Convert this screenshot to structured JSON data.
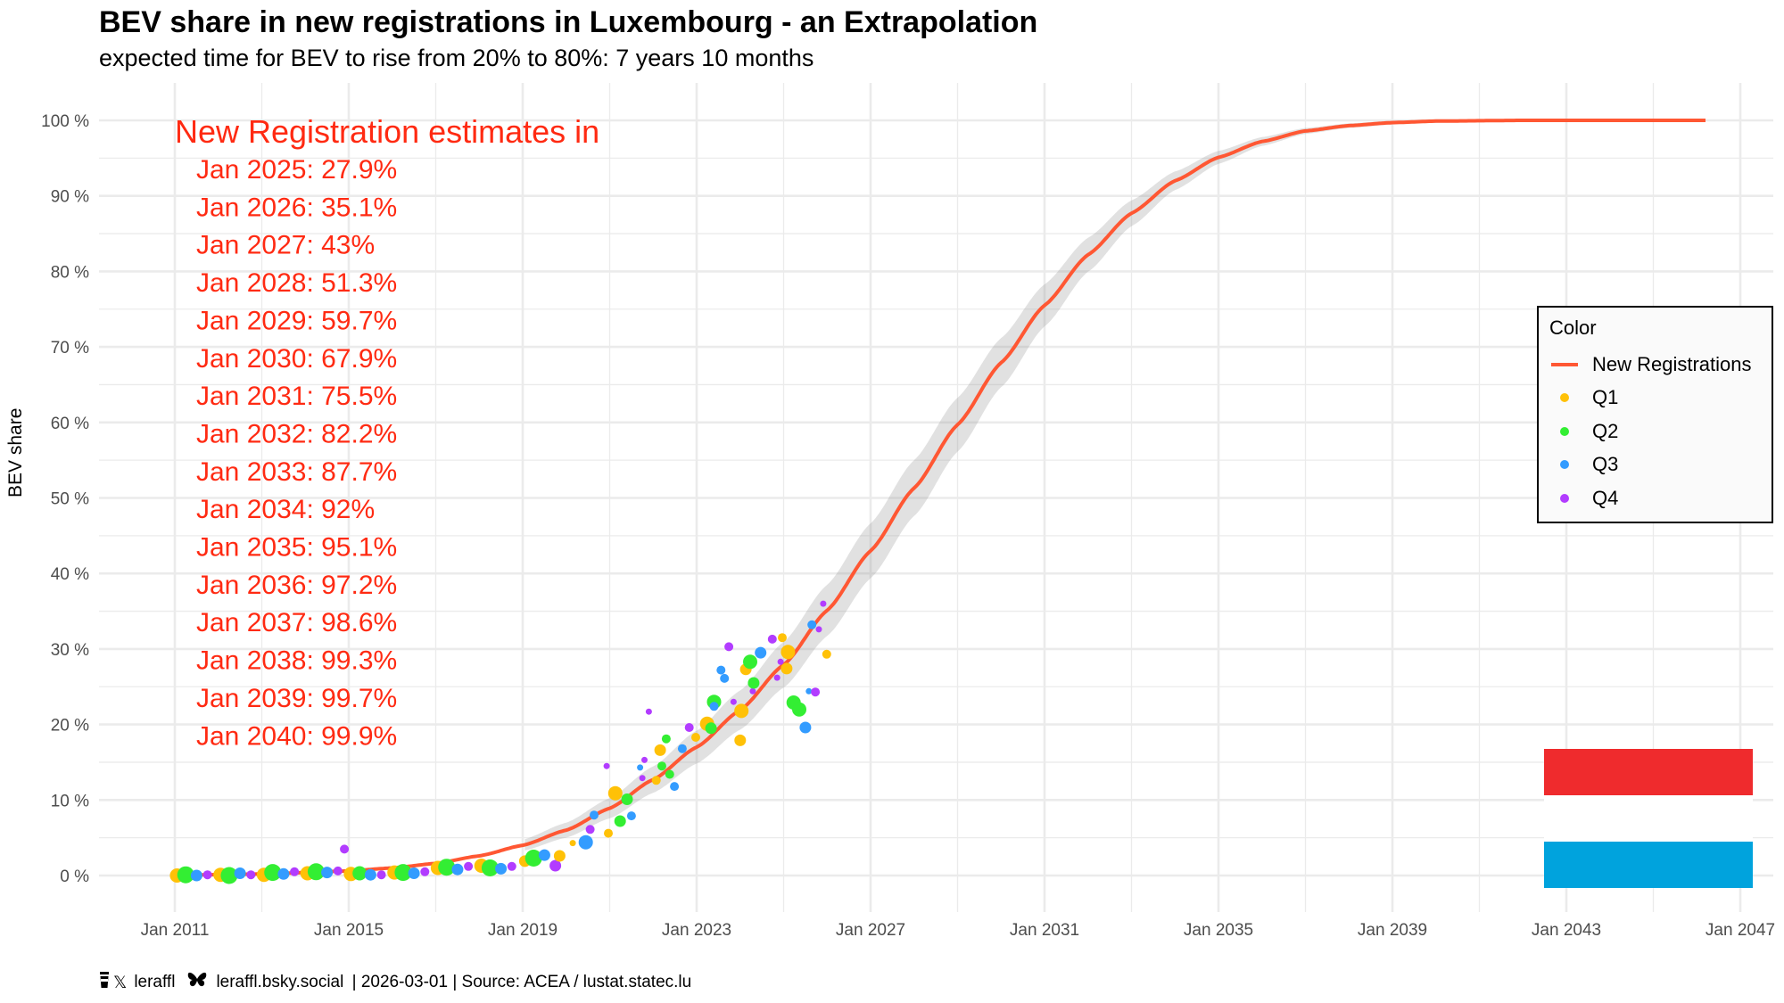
{
  "chart_data": {
    "type": "scatter",
    "title": "BEV share in new registrations in Luxembourg - an Extrapolation",
    "subtitle": "expected time for BEV to rise from 20% to 80%: 7 years 10 months",
    "xlabel": "",
    "ylabel": "BEV share",
    "xlim": [
      2009.8,
      2047.8
    ],
    "ylim": [
      -5,
      105
    ],
    "grid": true,
    "x_ticks": [
      "Jan 2011",
      "Jan 2015",
      "Jan 2019",
      "Jan 2023",
      "Jan 2027",
      "Jan 2031",
      "Jan 2035",
      "Jan 2039",
      "Jan 2043",
      "Jan 2047"
    ],
    "x_tick_values": [
      2011,
      2015,
      2019,
      2023,
      2027,
      2031,
      2035,
      2039,
      2043,
      2047
    ],
    "y_ticks": [
      "0 %",
      "10 %",
      "20 %",
      "30 %",
      "40 %",
      "50 %",
      "60 %",
      "70 %",
      "80 %",
      "90 %",
      "100 %"
    ],
    "y_tick_values": [
      0,
      10,
      20,
      30,
      40,
      50,
      60,
      70,
      80,
      90,
      100
    ],
    "legend": {
      "title": "Color",
      "position": "right",
      "entries": [
        {
          "label": "New Registrations",
          "kind": "line",
          "color": "#FF5733"
        },
        {
          "label": "Q1",
          "kind": "point",
          "color": "#FFC107"
        },
        {
          "label": "Q2",
          "kind": "point",
          "color": "#33EE33"
        },
        {
          "label": "Q3",
          "kind": "point",
          "color": "#339CFF"
        },
        {
          "label": "Q4",
          "kind": "point",
          "color": "#B23CFF"
        }
      ]
    },
    "fit_line": {
      "name": "New Registrations",
      "color": "#FF5733",
      "ribbon_color": "#DDDDDD",
      "x_start": 2011.0,
      "x_end": 2046.2,
      "points": [
        {
          "x": 2011,
          "y": 0.05
        },
        {
          "x": 2013,
          "y": 0.2
        },
        {
          "x": 2015,
          "y": 0.6
        },
        {
          "x": 2016,
          "y": 1.0
        },
        {
          "x": 2017,
          "y": 1.6
        },
        {
          "x": 2018,
          "y": 2.6
        },
        {
          "x": 2019,
          "y": 4.0
        },
        {
          "x": 2020,
          "y": 6.0
        },
        {
          "x": 2021,
          "y": 8.9
        },
        {
          "x": 2022,
          "y": 12.7
        },
        {
          "x": 2023,
          "y": 17.0
        },
        {
          "x": 2024,
          "y": 21.9
        },
        {
          "x": 2025,
          "y": 27.9
        },
        {
          "x": 2026,
          "y": 35.1
        },
        {
          "x": 2027,
          "y": 43.0
        },
        {
          "x": 2028,
          "y": 51.3
        },
        {
          "x": 2029,
          "y": 59.7
        },
        {
          "x": 2030,
          "y": 67.9
        },
        {
          "x": 2031,
          "y": 75.5
        },
        {
          "x": 2032,
          "y": 82.2
        },
        {
          "x": 2033,
          "y": 87.7
        },
        {
          "x": 2034,
          "y": 92.0
        },
        {
          "x": 2035,
          "y": 95.1
        },
        {
          "x": 2036,
          "y": 97.2
        },
        {
          "x": 2037,
          "y": 98.6
        },
        {
          "x": 2038,
          "y": 99.3
        },
        {
          "x": 2039,
          "y": 99.7
        },
        {
          "x": 2040,
          "y": 99.9
        },
        {
          "x": 2042,
          "y": 100.0
        },
        {
          "x": 2046.2,
          "y": 100.0
        }
      ]
    },
    "annotation": {
      "heading": "New Registration estimates in",
      "color": "#FF2A12",
      "lines": [
        "Jan 2025: 27.9%",
        "Jan 2026: 35.1%",
        "Jan 2027: 43%",
        "Jan 2028: 51.3%",
        "Jan 2029: 59.7%",
        "Jan 2030: 67.9%",
        "Jan 2031: 75.5%",
        "Jan 2032: 82.2%",
        "Jan 2033: 87.7%",
        "Jan 2034: 92%",
        "Jan 2035: 95.1%",
        "Jan 2036: 97.2%",
        "Jan 2037: 98.6%",
        "Jan 2038: 99.3%",
        "Jan 2039: 99.7%",
        "Jan 2040: 99.9%"
      ]
    },
    "flag": {
      "label": "Luxembourg flag",
      "colors": [
        "#EF2B2D",
        "#FFFFFF",
        "#00A3DD"
      ]
    },
    "series": [
      {
        "name": "Q1",
        "color": "#FFC107",
        "points": [
          {
            "x": 2011.05,
            "y": 0.0,
            "s": 3
          },
          {
            "x": 2012.05,
            "y": 0.1,
            "s": 3
          },
          {
            "x": 2013.05,
            "y": 0.1,
            "s": 3
          },
          {
            "x": 2014.05,
            "y": 0.3,
            "s": 3
          },
          {
            "x": 2015.05,
            "y": 0.2,
            "s": 3
          },
          {
            "x": 2016.05,
            "y": 0.4,
            "s": 3
          },
          {
            "x": 2017.05,
            "y": 1.0,
            "s": 3
          },
          {
            "x": 2018.05,
            "y": 1.3,
            "s": 3
          },
          {
            "x": 2019.05,
            "y": 1.9,
            "s": 2
          },
          {
            "x": 2019.85,
            "y": 2.6,
            "s": 2
          },
          {
            "x": 2020.15,
            "y": 4.3,
            "s": 0
          },
          {
            "x": 2020.97,
            "y": 5.6,
            "s": 1
          },
          {
            "x": 2021.13,
            "y": 10.9,
            "s": 3
          },
          {
            "x": 2022.07,
            "y": 12.6,
            "s": 1
          },
          {
            "x": 2022.16,
            "y": 16.6,
            "s": 2
          },
          {
            "x": 2022.98,
            "y": 18.3,
            "s": 1
          },
          {
            "x": 2023.24,
            "y": 20.1,
            "s": 3
          },
          {
            "x": 2024.0,
            "y": 17.9,
            "s": 2
          },
          {
            "x": 2024.03,
            "y": 21.8,
            "s": 3
          },
          {
            "x": 2024.13,
            "y": 27.3,
            "s": 2
          },
          {
            "x": 2024.97,
            "y": 31.5,
            "s": 1
          },
          {
            "x": 2025.07,
            "y": 27.4,
            "s": 2
          },
          {
            "x": 2025.1,
            "y": 29.6,
            "s": 3
          },
          {
            "x": 2025.99,
            "y": 29.3,
            "s": 1
          }
        ]
      },
      {
        "name": "Q2",
        "color": "#33EE33",
        "points": [
          {
            "x": 2011.25,
            "y": 0.1,
            "s": 4
          },
          {
            "x": 2012.25,
            "y": 0.0,
            "s": 4
          },
          {
            "x": 2013.25,
            "y": 0.4,
            "s": 4
          },
          {
            "x": 2014.25,
            "y": 0.5,
            "s": 4
          },
          {
            "x": 2015.25,
            "y": 0.3,
            "s": 3
          },
          {
            "x": 2016.25,
            "y": 0.4,
            "s": 4
          },
          {
            "x": 2017.25,
            "y": 1.1,
            "s": 4
          },
          {
            "x": 2018.25,
            "y": 1.0,
            "s": 4
          },
          {
            "x": 2019.25,
            "y": 2.3,
            "s": 4
          },
          {
            "x": 2021.24,
            "y": 7.2,
            "s": 2
          },
          {
            "x": 2021.4,
            "y": 10.1,
            "s": 2
          },
          {
            "x": 2022.2,
            "y": 14.5,
            "s": 1
          },
          {
            "x": 2022.3,
            "y": 18.1,
            "s": 1
          },
          {
            "x": 2022.38,
            "y": 13.4,
            "s": 1
          },
          {
            "x": 2023.33,
            "y": 19.5,
            "s": 2
          },
          {
            "x": 2023.4,
            "y": 23.0,
            "s": 3
          },
          {
            "x": 2024.23,
            "y": 28.3,
            "s": 3
          },
          {
            "x": 2024.31,
            "y": 25.5,
            "s": 2
          },
          {
            "x": 2025.23,
            "y": 22.9,
            "s": 3
          },
          {
            "x": 2025.36,
            "y": 22.0,
            "s": 3
          }
        ]
      },
      {
        "name": "Q3",
        "color": "#339CFF",
        "points": [
          {
            "x": 2011.5,
            "y": 0.0,
            "s": 2
          },
          {
            "x": 2012.5,
            "y": 0.3,
            "s": 2
          },
          {
            "x": 2013.5,
            "y": 0.2,
            "s": 2
          },
          {
            "x": 2014.5,
            "y": 0.4,
            "s": 2
          },
          {
            "x": 2015.5,
            "y": 0.1,
            "s": 2
          },
          {
            "x": 2016.5,
            "y": 0.3,
            "s": 2
          },
          {
            "x": 2017.5,
            "y": 0.8,
            "s": 2
          },
          {
            "x": 2018.5,
            "y": 0.9,
            "s": 2
          },
          {
            "x": 2019.5,
            "y": 2.7,
            "s": 2
          },
          {
            "x": 2020.45,
            "y": 4.4,
            "s": 3
          },
          {
            "x": 2020.64,
            "y": 8.0,
            "s": 1
          },
          {
            "x": 2021.5,
            "y": 7.9,
            "s": 1
          },
          {
            "x": 2021.7,
            "y": 14.3,
            "s": 0
          },
          {
            "x": 2022.49,
            "y": 11.8,
            "s": 1
          },
          {
            "x": 2022.67,
            "y": 16.8,
            "s": 1
          },
          {
            "x": 2023.4,
            "y": 22.4,
            "s": 1
          },
          {
            "x": 2023.56,
            "y": 27.2,
            "s": 1
          },
          {
            "x": 2023.64,
            "y": 26.1,
            "s": 1
          },
          {
            "x": 2024.47,
            "y": 29.5,
            "s": 2
          },
          {
            "x": 2025.5,
            "y": 19.6,
            "s": 2
          },
          {
            "x": 2025.58,
            "y": 24.4,
            "s": 0
          },
          {
            "x": 2025.65,
            "y": 33.2,
            "s": 1
          }
        ]
      },
      {
        "name": "Q4",
        "color": "#B23CFF",
        "points": [
          {
            "x": 2011.75,
            "y": 0.1,
            "s": 1
          },
          {
            "x": 2012.75,
            "y": 0.1,
            "s": 1
          },
          {
            "x": 2013.75,
            "y": 0.5,
            "s": 1
          },
          {
            "x": 2014.75,
            "y": 0.6,
            "s": 1
          },
          {
            "x": 2014.9,
            "y": 3.5,
            "s": 1
          },
          {
            "x": 2015.75,
            "y": 0.1,
            "s": 1
          },
          {
            "x": 2016.75,
            "y": 0.5,
            "s": 1
          },
          {
            "x": 2017.75,
            "y": 1.2,
            "s": 1
          },
          {
            "x": 2018.75,
            "y": 1.2,
            "s": 1
          },
          {
            "x": 2019.75,
            "y": 1.3,
            "s": 2
          },
          {
            "x": 2020.55,
            "y": 6.1,
            "s": 1
          },
          {
            "x": 2020.93,
            "y": 14.5,
            "s": 0
          },
          {
            "x": 2021.75,
            "y": 12.9,
            "s": 0
          },
          {
            "x": 2021.8,
            "y": 15.3,
            "s": 0
          },
          {
            "x": 2021.9,
            "y": 21.7,
            "s": 0
          },
          {
            "x": 2022.83,
            "y": 19.6,
            "s": 1
          },
          {
            "x": 2023.3,
            "y": 19.7,
            "s": 0
          },
          {
            "x": 2023.74,
            "y": 30.3,
            "s": 1
          },
          {
            "x": 2023.85,
            "y": 23.0,
            "s": 0
          },
          {
            "x": 2024.29,
            "y": 24.4,
            "s": 0
          },
          {
            "x": 2024.74,
            "y": 31.3,
            "s": 1
          },
          {
            "x": 2024.85,
            "y": 26.2,
            "s": 0
          },
          {
            "x": 2024.93,
            "y": 28.3,
            "s": 0
          },
          {
            "x": 2025.73,
            "y": 24.3,
            "s": 1
          },
          {
            "x": 2025.81,
            "y": 32.6,
            "s": 0
          },
          {
            "x": 2025.91,
            "y": 36.0,
            "s": 0
          }
        ]
      }
    ]
  },
  "caption": {
    "handle_x": "leraffl",
    "handle_bsky": "leraffl.bsky.social",
    "rest": " | 2026-03-01 | Source: ACEA / lustat.statec.lu",
    "icons": [
      "coffee-icon",
      "x-logo-icon",
      "butterfly-icon"
    ]
  }
}
